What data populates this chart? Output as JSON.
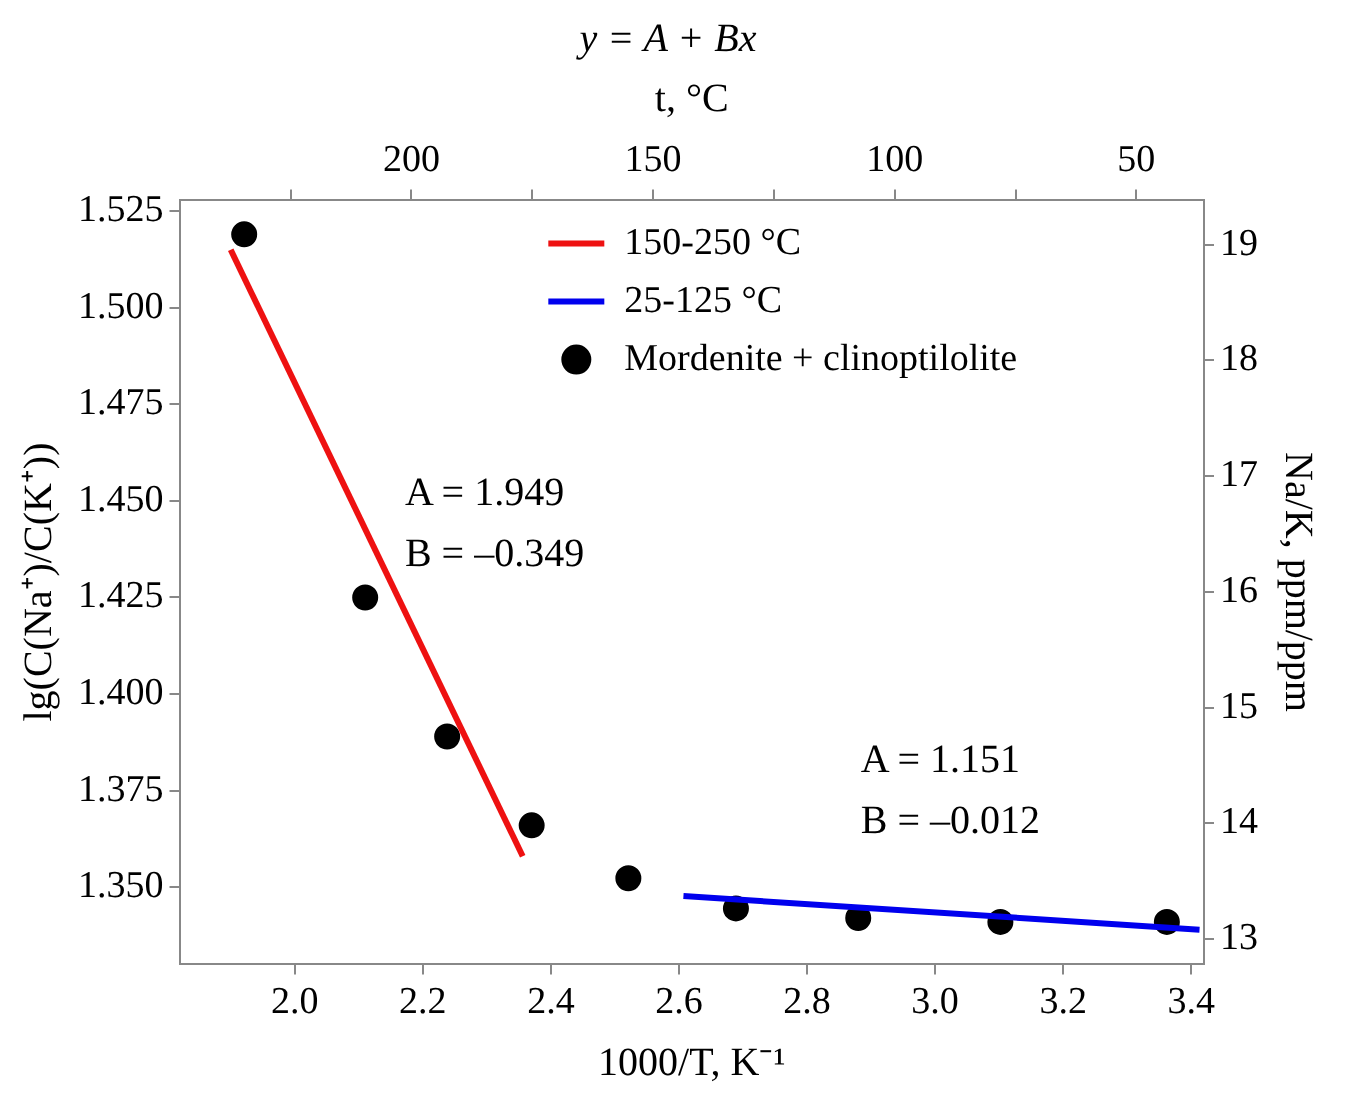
{
  "chart_data": {
    "type": "scatter",
    "title": "y = A + Bx",
    "xlabel": "1000/T, K⁻¹",
    "x2label": "t, °C",
    "ylabel": "lg(C(Na⁺)/C(K⁺))",
    "y2label": "Na/K, ppm/ppm",
    "xlim": [
      1.82,
      3.42
    ],
    "xticks": [
      {
        "value": 2,
        "label": "2.0"
      },
      2.2,
      2.4,
      2.6,
      2.8,
      {
        "value": 3,
        "label": "3.0"
      },
      3.2,
      3.4
    ],
    "x2lim": [
      248,
      36
    ],
    "x2ticks": [
      {
        "value": 225,
        "label": null
      },
      200,
      {
        "value": 175,
        "label": null
      },
      150,
      {
        "value": 125,
        "label": null
      },
      100,
      {
        "value": 75,
        "label": null
      },
      50
    ],
    "ylim": [
      1.33,
      1.528
    ],
    "yticks": [
      {
        "value": 1.35,
        "label": "1.350"
      },
      1.375,
      {
        "value": 1.4,
        "label": "1.400"
      },
      1.425,
      {
        "value": 1.45,
        "label": "1.450"
      },
      1.475,
      {
        "value": 1.5,
        "label": "1.500"
      },
      1.525
    ],
    "y2lim": [
      12.78,
      19.39
    ],
    "y2ticks": [
      13,
      14,
      15,
      16,
      17,
      18,
      19
    ],
    "series": [
      {
        "name": "150-250 °C",
        "type": "line",
        "color": "#ee1111",
        "x": [
          1.9,
          2.356
        ],
        "values": [
          1.515,
          1.358
        ]
      },
      {
        "name": "25-125 °C",
        "type": "line",
        "color": "#0000ee",
        "x": [
          2.607,
          3.413
        ],
        "values": [
          1.3477,
          1.339
        ]
      },
      {
        "name": "Mordenite + clinoptilolite",
        "color": "#000000",
        "marker": "circle",
        "x": [
          1.921,
          2.11,
          2.238,
          2.37,
          2.521,
          2.689,
          2.88,
          3.102,
          3.362
        ],
        "values": [
          1.519,
          1.425,
          1.389,
          1.366,
          1.3523,
          1.3445,
          1.342,
          1.341,
          1.341
        ]
      }
    ],
    "annotations": [
      "A = 1.949",
      "B = –0.349",
      "A = 1.151",
      "B = –0.012"
    ],
    "legend": "top",
    "grid": false
  }
}
